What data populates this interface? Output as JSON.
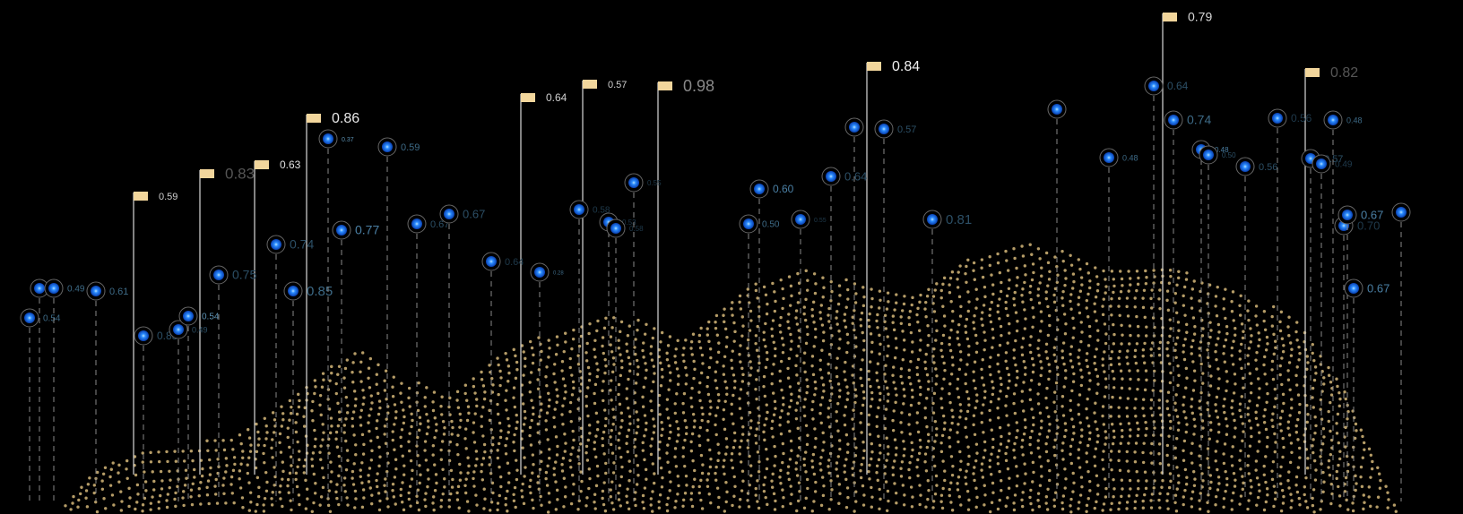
{
  "flags": [
    {
      "label": "0.59"
    },
    {
      "label": "0.83"
    },
    {
      "label": "0.63"
    },
    {
      "label": "0.86"
    },
    {
      "label": "0.64"
    },
    {
      "label": "0.57"
    },
    {
      "label": "0.98"
    },
    {
      "label": "0.84"
    },
    {
      "label": "0.79"
    },
    {
      "label": "0.82"
    }
  ],
  "markers": [
    {
      "label": "0.54"
    },
    {
      "label": "0.49"
    },
    {
      "label": "0.61"
    },
    {
      "label": "0.83"
    },
    {
      "label": "0.49"
    },
    {
      "label": "0.54"
    },
    {
      "label": "0.75"
    },
    {
      "label": "0.74"
    },
    {
      "label": "0.85"
    },
    {
      "label": "0.37"
    },
    {
      "label": "0.77"
    },
    {
      "label": "0.59"
    },
    {
      "label": "0.67"
    },
    {
      "label": "0.67"
    },
    {
      "label": "0.64"
    },
    {
      "label": "0.28"
    },
    {
      "label": "0.58"
    },
    {
      "label": "0.53"
    },
    {
      "label": "0.58"
    },
    {
      "label": "0.55"
    },
    {
      "label": "0.50"
    },
    {
      "label": "0.60"
    },
    {
      "label": "0.55"
    },
    {
      "label": "0.64"
    },
    {
      "label": "0.57"
    },
    {
      "label": "0.81"
    },
    {
      "label": "0.48"
    },
    {
      "label": "0.64"
    },
    {
      "label": "0.74"
    },
    {
      "label": "0.48"
    },
    {
      "label": "0.50"
    },
    {
      "label": "0.56"
    },
    {
      "label": "0.56"
    },
    {
      "label": "0.57"
    },
    {
      "label": "0.49"
    },
    {
      "label": "0.48"
    },
    {
      "label": "0.70"
    },
    {
      "label": "0.67"
    },
    {
      "label": "0.67"
    }
  ]
}
